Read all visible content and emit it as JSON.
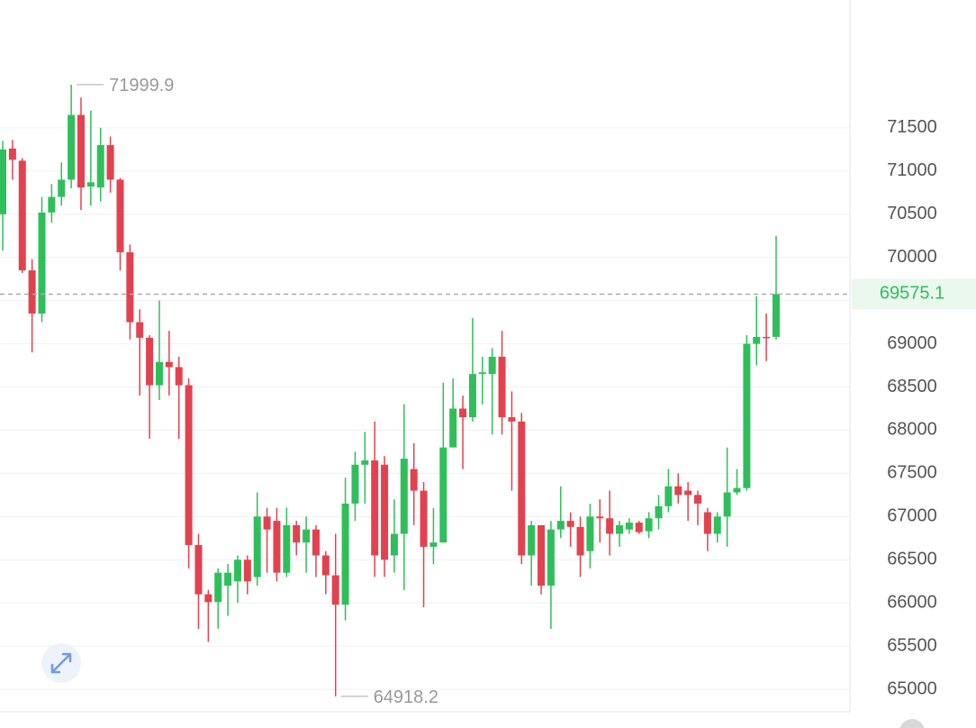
{
  "chart_data": {
    "type": "candlestick",
    "open": [
      70500,
      71260,
      71120,
      69850,
      69350,
      70520,
      70700,
      70900,
      71650,
      70820,
      70810,
      71300,
      70900,
      70060,
      69250,
      69070,
      68520,
      68790,
      68730,
      68520,
      66670,
      66100,
      66010,
      66200,
      66250,
      66500,
      66300,
      67000,
      66950,
      66350,
      66900,
      66700,
      66850,
      66550,
      66320,
      65980,
      67150,
      67600,
      67650,
      67600,
      66550,
      66800,
      67550,
      67300,
      66650,
      66700,
      67800,
      68250,
      68150,
      68650,
      68650,
      68850,
      68150,
      68100,
      66550,
      66900,
      66200,
      66850,
      66950,
      66880,
      66600,
      67000,
      66980,
      66800,
      66850,
      66930,
      66830,
      66980,
      67120,
      67350,
      67300,
      67250,
      67050,
      66800,
      67000,
      67280,
      67330,
      69000,
      69080,
      69080
    ],
    "high": [
      71350,
      71360,
      71150,
      69980,
      70700,
      70850,
      71100,
      71999.9,
      71850,
      71700,
      71500,
      71400,
      70920,
      70150,
      69400,
      69100,
      69500,
      69150,
      68850,
      68600,
      66800,
      66150,
      66400,
      66450,
      66550,
      66550,
      67280,
      67100,
      67100,
      67100,
      66950,
      67000,
      66900,
      66600,
      66800,
      67450,
      67750,
      67980,
      68100,
      67700,
      67200,
      68300,
      67850,
      67400,
      67100,
      68550,
      68600,
      68400,
      69300,
      68850,
      68950,
      69150,
      68450,
      68200,
      66950,
      66900,
      66950,
      67350,
      67050,
      67000,
      67150,
      67200,
      67300,
      66950,
      66980,
      66950,
      67050,
      67250,
      67550,
      67500,
      67400,
      67300,
      67100,
      67050,
      67800,
      67550,
      69100,
      69550,
      69350,
      70250
    ],
    "low": [
      70080,
      70900,
      69820,
      68900,
      69250,
      70400,
      70600,
      70800,
      70550,
      70600,
      70650,
      70750,
      69850,
      69050,
      68400,
      67900,
      68350,
      68400,
      67900,
      66400,
      65700,
      65550,
      65700,
      65850,
      66000,
      66100,
      66200,
      66350,
      66250,
      66300,
      66550,
      66350,
      66300,
      66100,
      64918.2,
      65800,
      66950,
      67150,
      66300,
      66300,
      66350,
      66150,
      66900,
      65950,
      66450,
      66700,
      67800,
      67550,
      68100,
      68300,
      67950,
      67950,
      67300,
      66450,
      66200,
      66100,
      65700,
      66750,
      66650,
      66300,
      66400,
      66700,
      66550,
      66650,
      66800,
      66800,
      66750,
      66850,
      67050,
      67150,
      66950,
      66900,
      66600,
      66700,
      66650,
      67250,
      67300,
      68750,
      68800,
      69050
    ],
    "close": [
      71250,
      71130,
      69850,
      69350,
      70520,
      70700,
      70900,
      71650,
      70810,
      70870,
      71300,
      70900,
      70060,
      69250,
      69070,
      68520,
      68790,
      68730,
      68520,
      66670,
      66100,
      66010,
      66350,
      66350,
      66500,
      66250,
      67000,
      66850,
      66350,
      66900,
      66700,
      66850,
      66550,
      66320,
      65980,
      67150,
      67600,
      67650,
      66550,
      66500,
      66800,
      67670,
      67300,
      66650,
      66700,
      67800,
      68250,
      68150,
      68650,
      68670,
      68850,
      68150,
      68100,
      66550,
      66900,
      66200,
      66850,
      66950,
      66880,
      66550,
      67000,
      66980,
      66800,
      66900,
      66930,
      66820,
      66980,
      67120,
      67350,
      67250,
      67250,
      67150,
      66800,
      67000,
      67280,
      67330,
      69000,
      69080,
      69070,
      69575.1
    ],
    "up_color": "#2fbf5a",
    "down_color": "#e2424f",
    "ylim": [
      64740,
      72980
    ],
    "yticks": [
      65000,
      65500,
      66000,
      66500,
      67000,
      67500,
      68000,
      68500,
      69000,
      69500,
      70000,
      70500,
      71000,
      71500
    ],
    "grid": true
  }
}
